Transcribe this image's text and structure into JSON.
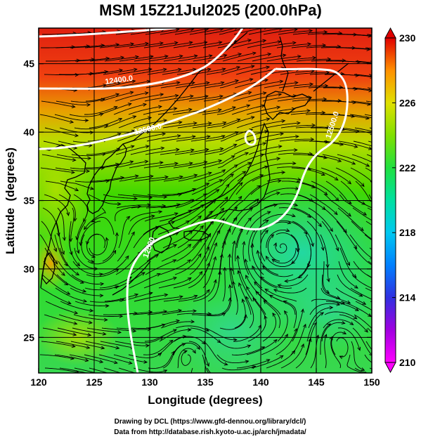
{
  "title": "MSM 15Z21Jul2025 (200.0hPa)",
  "map": {
    "lon_range": [
      120,
      150
    ],
    "lat_range": [
      22.4,
      47.6
    ],
    "xlabel": "Longitude (degrees)",
    "ylabel": "Latitude  (degrees)",
    "lon_ticks": [
      "120",
      "125",
      "130",
      "135",
      "140",
      "145",
      "150"
    ],
    "lat_ticks": [
      "25",
      "30",
      "35",
      "40",
      "45"
    ],
    "grid": true
  },
  "colorbar": {
    "min": 210,
    "max": 230,
    "tick_labels": [
      "230",
      "226",
      "222",
      "218",
      "214",
      "210"
    ],
    "colors": [
      "#ff00ff",
      "#a000e0",
      "#3030e0",
      "#00a0ff",
      "#00e0d0",
      "#00e070",
      "#40e000",
      "#c0e000",
      "#ffe000",
      "#ff9000",
      "#ff3000",
      "#e00000"
    ]
  },
  "contours": [
    {
      "label": "12400.0"
    },
    {
      "label": "12500.0"
    },
    {
      "label": "12500.0"
    },
    {
      "label": "12500"
    }
  ],
  "credits": {
    "line1": "Drawing by DCL (https://www.gfd-dennou.org/library/dcl/)",
    "line2": "Data from http://database.rish.kyoto-u.ac.jp/arch/jmadata/"
  }
}
